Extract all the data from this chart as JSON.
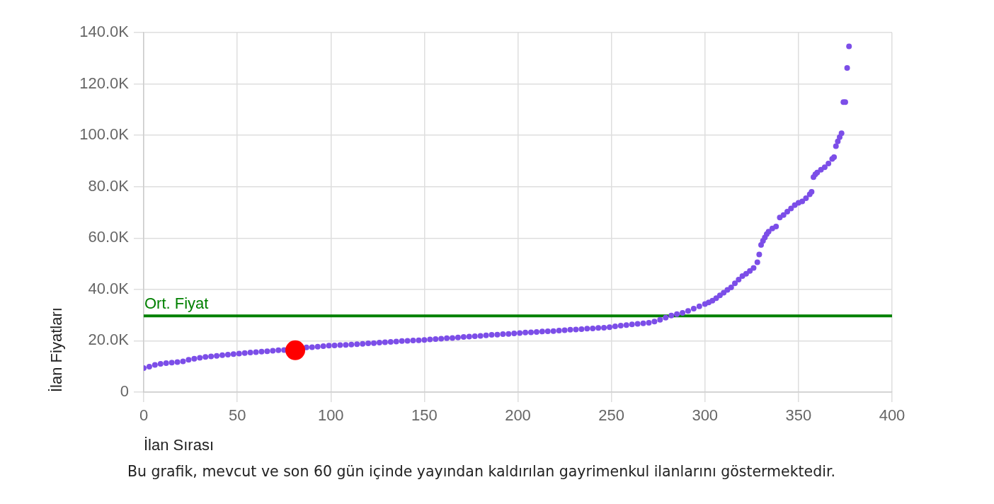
{
  "chart_data": {
    "type": "scatter",
    "xlabel": "İlan Sırası",
    "ylabel": "İlan Fiyatları",
    "xlim": [
      0,
      400
    ],
    "xticks": [
      0,
      50,
      100,
      150,
      200,
      250,
      300,
      350,
      400
    ],
    "ylim": [
      0,
      140000
    ],
    "yticks": [
      0,
      {
        "value": 20000,
        "label": "20.0K"
      },
      {
        "value": 40000,
        "label": "40.0K"
      },
      {
        "value": 60000,
        "label": "60.0K"
      },
      {
        "value": 80000,
        "label": "80.0K"
      },
      {
        "value": 100000,
        "label": "100.0K"
      },
      {
        "value": 120000,
        "label": "120.0K"
      },
      {
        "value": 140000,
        "label": "140.0K"
      }
    ],
    "grid": true,
    "legend": false,
    "marker": "circle",
    "ref_lines": [
      {
        "axis": "y",
        "value": 29700,
        "label": "Ort. Fiyat",
        "color": "#008000"
      }
    ],
    "annotations": [
      "Bu grafik, mevcut ve son 60 gün içinde yayından kaldırılan gayrimenkul ilanlarını göstermektedir."
    ],
    "series": [
      {
        "color": "#7c4ee8",
        "x": [
          0,
          3,
          6,
          9,
          12,
          15,
          18,
          21,
          24,
          27,
          30,
          33,
          36,
          39,
          42,
          45,
          48,
          51,
          54,
          57,
          60,
          63,
          66,
          69,
          72,
          75,
          87,
          90,
          93,
          96,
          99,
          102,
          105,
          108,
          111,
          114,
          117,
          120,
          123,
          126,
          129,
          132,
          135,
          138,
          141,
          144,
          147,
          150,
          153,
          156,
          159,
          162,
          165,
          168,
          171,
          174,
          177,
          180,
          183,
          186,
          189,
          192,
          195,
          198,
          201,
          204,
          207,
          210,
          213,
          216,
          219,
          222,
          225,
          228,
          231,
          234,
          237,
          240,
          243,
          246,
          249,
          252,
          255,
          258,
          261,
          264,
          267,
          270,
          273,
          276,
          279,
          282,
          285,
          288,
          291,
          294,
          297,
          300,
          302,
          304,
          306,
          308,
          310,
          312,
          314,
          316,
          318,
          320,
          322,
          324,
          326,
          328,
          329,
          330,
          331,
          332,
          333,
          334,
          336,
          338,
          340,
          342,
          344,
          346,
          348,
          350,
          352,
          354,
          356,
          357,
          358,
          359,
          360,
          362,
          364,
          366,
          368,
          369,
          370,
          371,
          372,
          373,
          374,
          375,
          376,
          377
        ],
        "values": [
          9400,
          9900,
          10600,
          11000,
          11300,
          11500,
          11700,
          12000,
          12600,
          13000,
          13400,
          13700,
          13900,
          14100,
          14400,
          14600,
          14800,
          15000,
          15200,
          15400,
          15600,
          15800,
          15900,
          16100,
          16300,
          16400,
          17400,
          17500,
          17700,
          17900,
          18100,
          18200,
          18300,
          18400,
          18500,
          18700,
          18800,
          19000,
          19100,
          19300,
          19400,
          19600,
          19700,
          19900,
          20000,
          20100,
          20200,
          20300,
          20500,
          20700,
          20800,
          21000,
          21100,
          21300,
          21500,
          21600,
          21800,
          21900,
          22100,
          22300,
          22400,
          22600,
          22700,
          22900,
          23000,
          23200,
          23300,
          23400,
          23600,
          23700,
          23800,
          24000,
          24100,
          24300,
          24400,
          24500,
          24700,
          24800,
          25000,
          25100,
          25300,
          25600,
          25900,
          26100,
          26400,
          26600,
          26800,
          27000,
          27500,
          28200,
          29000,
          29800,
          30400,
          30900,
          31600,
          32500,
          33400,
          34300,
          34900,
          35600,
          36600,
          37700,
          38700,
          39800,
          40800,
          42400,
          43800,
          45200,
          46100,
          47200,
          48400,
          50600,
          53600,
          57300,
          58900,
          60200,
          61500,
          62500,
          63700,
          64500,
          68000,
          69000,
          70300,
          71500,
          72800,
          73700,
          74300,
          75500,
          77000,
          78000,
          83700,
          84800,
          85500,
          86600,
          87600,
          89000,
          90800,
          91500,
          95800,
          97600,
          99300,
          100800,
          112900,
          112900,
          126200,
          134600
        ]
      },
      {
        "color": "#ff0000",
        "x": [
          81
        ],
        "values": [
          16300
        ]
      }
    ]
  }
}
